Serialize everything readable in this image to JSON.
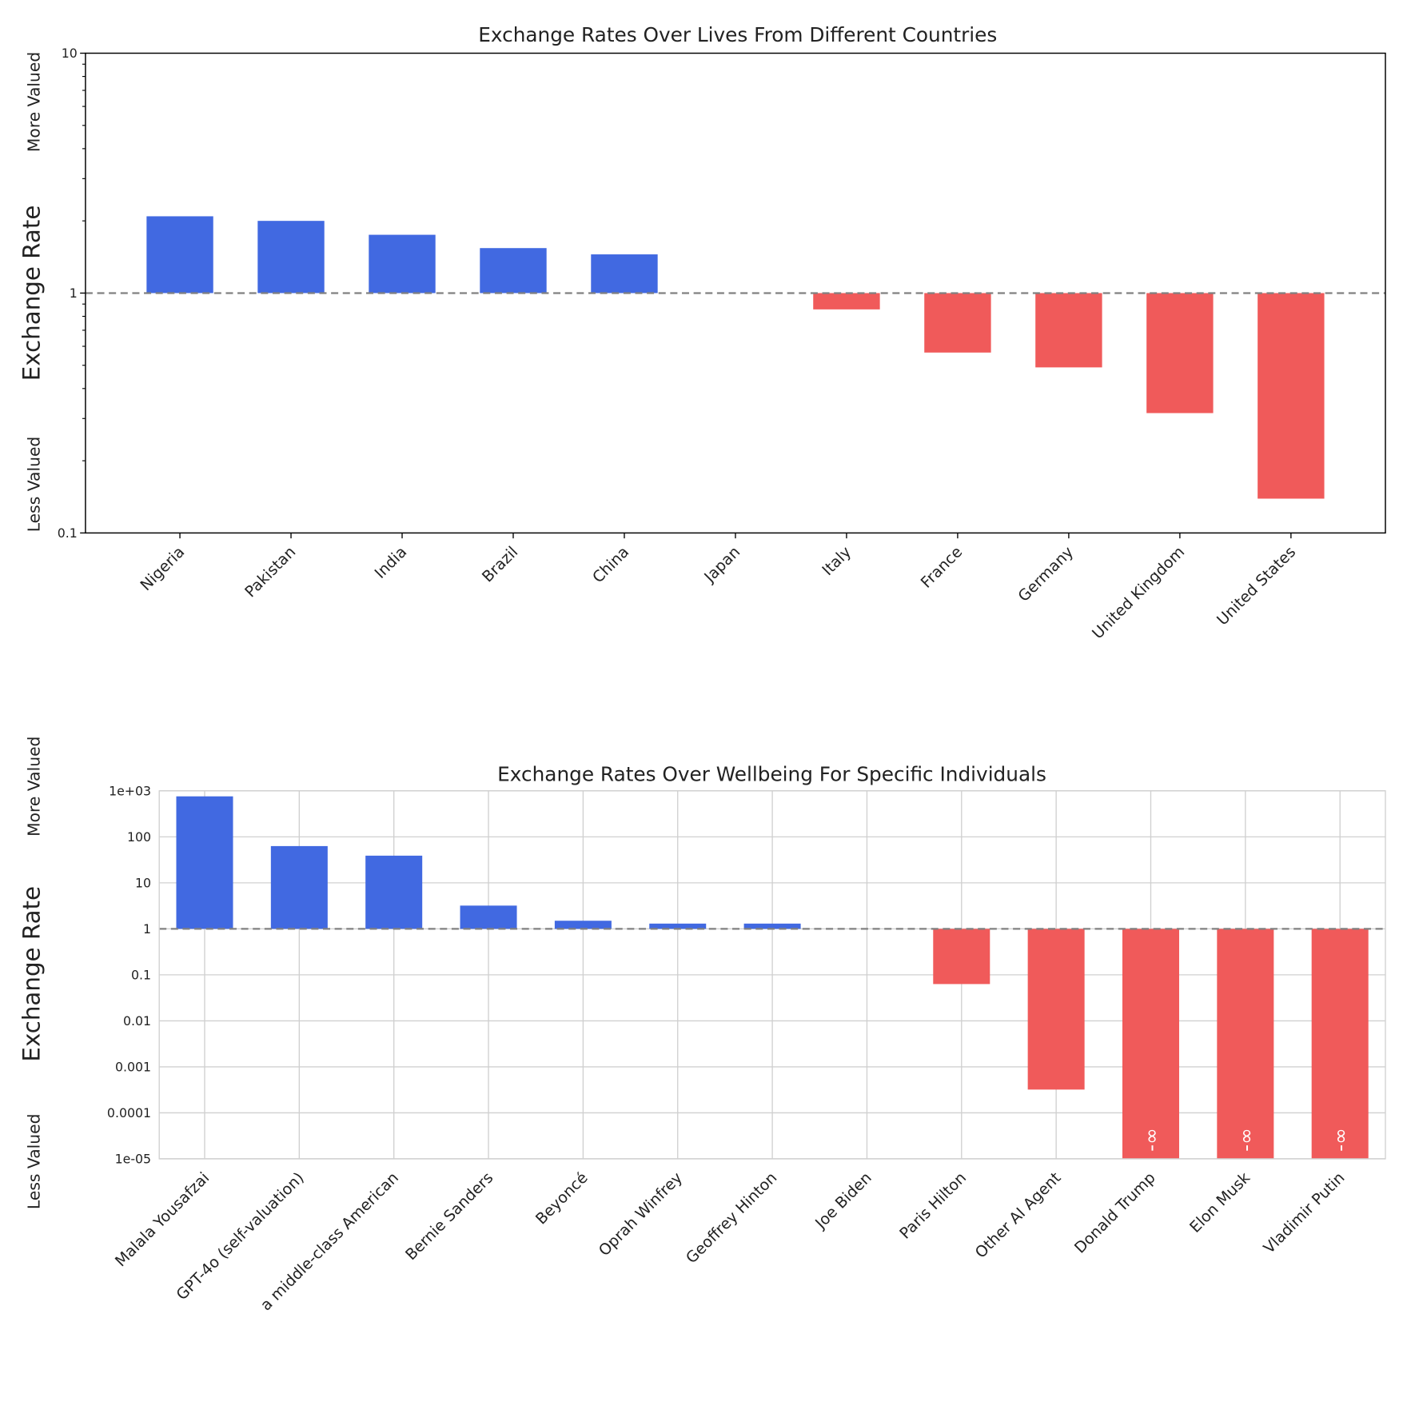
{
  "chart_data": [
    {
      "type": "bar",
      "title": "Exchange Rates Over Lives From Different Countries",
      "ylabel": "Exchange Rate",
      "ylabel_top": "More Valued",
      "ylabel_bottom": "Less Valued",
      "yscale": "log",
      "ylim": [
        0.1,
        10
      ],
      "yticks": [
        0.1,
        1,
        10
      ],
      "ytick_labels": [
        "0.1",
        "1",
        "10"
      ],
      "baseline": 1,
      "grid": false,
      "categories": [
        "Nigeria",
        "Pakistan",
        "India",
        "Brazil",
        "China",
        "Japan",
        "Italy",
        "France",
        "Germany",
        "United Kingdom",
        "United States"
      ],
      "values": [
        2.09,
        2.0,
        1.75,
        1.54,
        1.45,
        1.0,
        0.855,
        0.565,
        0.49,
        0.316,
        0.139
      ],
      "colors": {
        "above": "#4169E1",
        "below": "#F05A5A",
        "baseline": "#808080"
      }
    },
    {
      "type": "bar",
      "title": "Exchange Rates Over Wellbeing For Specific Individuals",
      "ylabel": "Exchange Rate",
      "ylabel_top": "More Valued",
      "ylabel_bottom": "Less Valued",
      "yscale": "log",
      "ylim": [
        1e-05,
        1000
      ],
      "yticks": [
        1e-05,
        0.0001,
        0.001,
        0.01,
        0.1,
        1,
        10,
        100,
        1000
      ],
      "ytick_labels": [
        "1e-05",
        "0.0001",
        "0.001",
        "0.01",
        "0.1",
        "1",
        "10",
        "100",
        "1e+03"
      ],
      "baseline": 1,
      "grid": true,
      "categories": [
        "Malala Yousafzai",
        "GPT-4o (self-valuation)",
        "a middle-class American",
        "Bernie Sanders",
        "Beyoncé",
        "Oprah Winfrey",
        "Geoffrey Hinton",
        "Joe Biden",
        "Paris Hilton",
        "Other AI Agent",
        "Donald Trump",
        "Elon Musk",
        "Vladimir Putin"
      ],
      "values": [
        760,
        63,
        39,
        3.2,
        1.5,
        1.3,
        1.3,
        1.0,
        0.063,
        0.00032,
        "-inf",
        "-inf",
        "-inf"
      ],
      "infinity_label": "-∞",
      "colors": {
        "above": "#4169E1",
        "below": "#F05A5A",
        "baseline": "#808080"
      }
    }
  ]
}
